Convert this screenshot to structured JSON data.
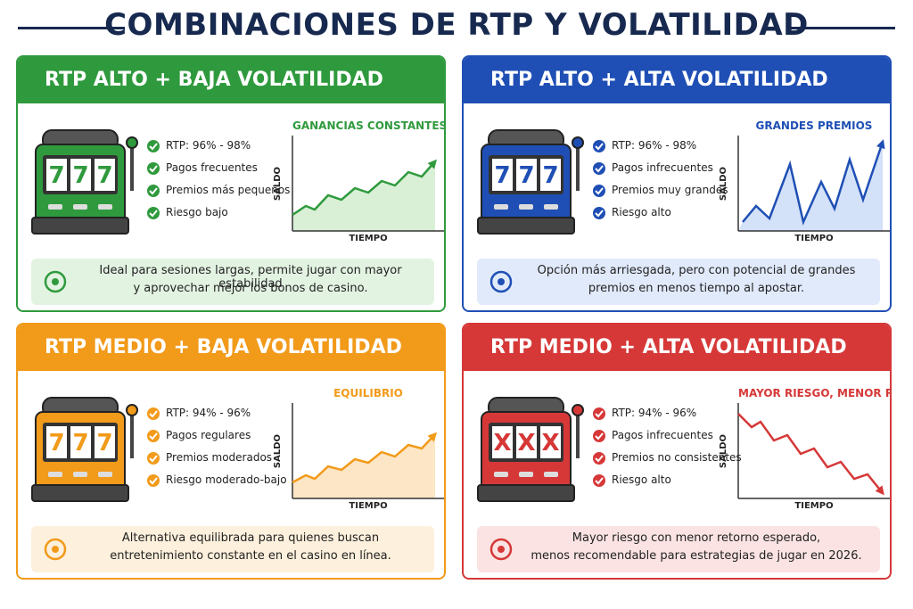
{
  "header": {
    "title": "COMBINACIONES DE RTP Y VOLATILIDAD"
  },
  "panels": [
    {
      "title": "RTP ALTO + BAJA VOLATILIDAD",
      "slot_symbols": "777",
      "bullets": [
        "RTP: 96% - 98%",
        "Pagos frecuentes",
        "Premios más pequeños",
        "Riesgo bajo"
      ],
      "chart_title": "GANANCIAS CONSTANTES",
      "y_label": "SALDO",
      "x_label": "TIEMPO",
      "note": [
        "Ideal para sesiones largas, permite jugar con mayor estabilidad",
        "y aprovechar mejor los bonos de casino."
      ]
    },
    {
      "title": "RTP ALTO + ALTA VOLATILIDAD",
      "slot_symbols": "777",
      "bullets": [
        "RTP: 96% - 98%",
        "Pagos infrecuentes",
        "Premios muy grandes",
        "Riesgo alto"
      ],
      "chart_title": "GRANDES PREMIOS",
      "y_label": "SALDO",
      "x_label": "TIEMPO",
      "note": [
        "Opción más arriesgada, pero con potencial de grandes",
        "premios en menos tiempo al apostar."
      ]
    },
    {
      "title": "RTP MEDIO + BAJA VOLATILIDAD",
      "slot_symbols": "777",
      "bullets": [
        "RTP: 94% - 96%",
        "Pagos regulares",
        "Premios moderados",
        "Riesgo moderado-bajo"
      ],
      "chart_title": "EQUILIBRIO",
      "y_label": "SALDO",
      "x_label": "TIEMPO",
      "note": [
        "Alternativa equilibrada para quienes buscan",
        "entretenimiento constante en el casino en línea."
      ]
    },
    {
      "title": "RTP MEDIO + ALTA VOLATILIDAD",
      "slot_symbols": "XXX",
      "bullets": [
        "RTP: 94% - 96%",
        "Pagos infrecuentes",
        "Premios no consistentes",
        "Riesgo alto"
      ],
      "chart_title": "MAYOR RIESGO, MENOR RETORNO",
      "y_label": "SALDO",
      "x_label": "TIEMPO",
      "note": [
        "Mayor riesgo con menor retorno esperado,",
        "menos recomendable para estrategias de jugar en 2026."
      ]
    }
  ]
}
